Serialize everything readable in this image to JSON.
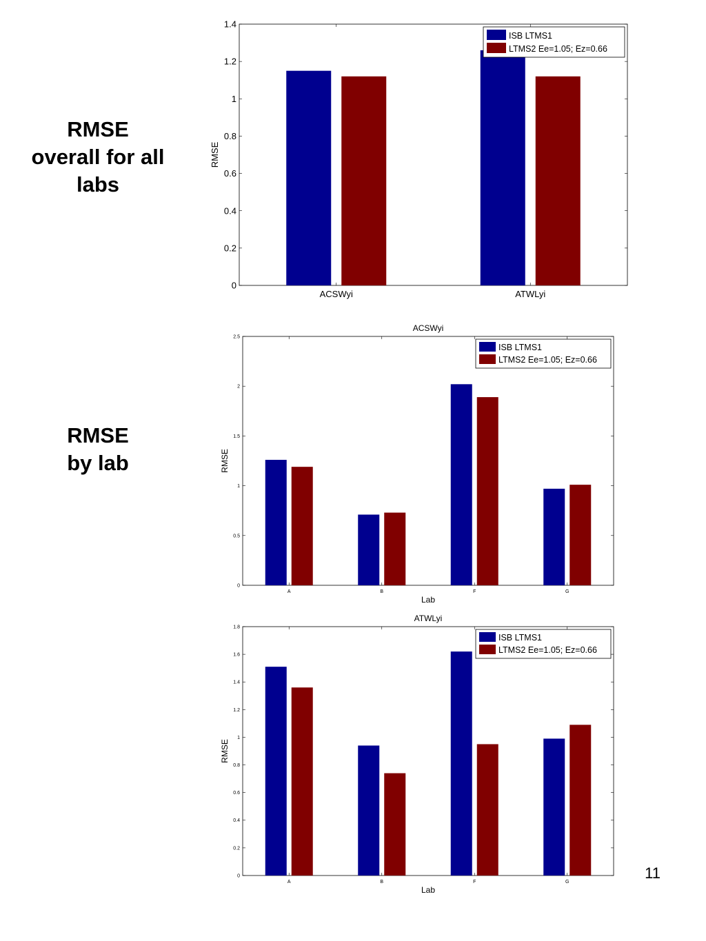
{
  "labels": {
    "overall": [
      "RMSE",
      "overall for all",
      "labs"
    ],
    "by_lab": [
      "RMSE",
      "by lab"
    ]
  },
  "page_number": "11",
  "colors": {
    "series1": "#00008f",
    "series2": "#800000"
  },
  "chart_data": [
    {
      "type": "bar",
      "title": "",
      "xlabel": "",
      "ylabel": "RMSE",
      "categories": [
        "ACSWyi",
        "ATWLyi"
      ],
      "ylim": [
        0,
        1.4
      ],
      "yticks": [
        "0",
        "0.2",
        "0.4",
        "0.6",
        "0.8",
        "1",
        "1.2",
        "1.4"
      ],
      "legend": "top-right",
      "series": [
        {
          "name": "ISB LTMS1",
          "values": [
            1.15,
            1.26
          ]
        },
        {
          "name": "LTMS2 Ee=1.05; Ez=0.66",
          "values": [
            1.12,
            1.12
          ]
        }
      ]
    },
    {
      "type": "bar",
      "title": "ACSWyi",
      "xlabel": "Lab",
      "ylabel": "RMSE",
      "categories": [
        "A",
        "B",
        "F",
        "G"
      ],
      "ylim": [
        0,
        2.5
      ],
      "yticks": [
        "0",
        "0.5",
        "1",
        "1.5",
        "2",
        "2.5"
      ],
      "legend": "top-right",
      "series": [
        {
          "name": "ISB LTMS1",
          "values": [
            1.26,
            0.71,
            2.02,
            0.97
          ]
        },
        {
          "name": "LTMS2 Ee=1.05; Ez=0.66",
          "values": [
            1.19,
            0.73,
            1.89,
            1.01
          ]
        }
      ]
    },
    {
      "type": "bar",
      "title": "ATWLyi",
      "xlabel": "Lab",
      "ylabel": "RMSE",
      "categories": [
        "A",
        "B",
        "F",
        "G"
      ],
      "ylim": [
        0,
        1.8
      ],
      "yticks": [
        "0",
        "0.2",
        "0.4",
        "0.6",
        "0.8",
        "1",
        "1.2",
        "1.4",
        "1.6",
        "1.8"
      ],
      "legend": "top-right",
      "series": [
        {
          "name": "ISB LTMS1",
          "values": [
            1.51,
            0.94,
            1.62,
            0.99
          ]
        },
        {
          "name": "LTMS2 Ee=1.05; Ez=0.66",
          "values": [
            1.36,
            0.74,
            0.95,
            1.09
          ]
        }
      ]
    }
  ]
}
